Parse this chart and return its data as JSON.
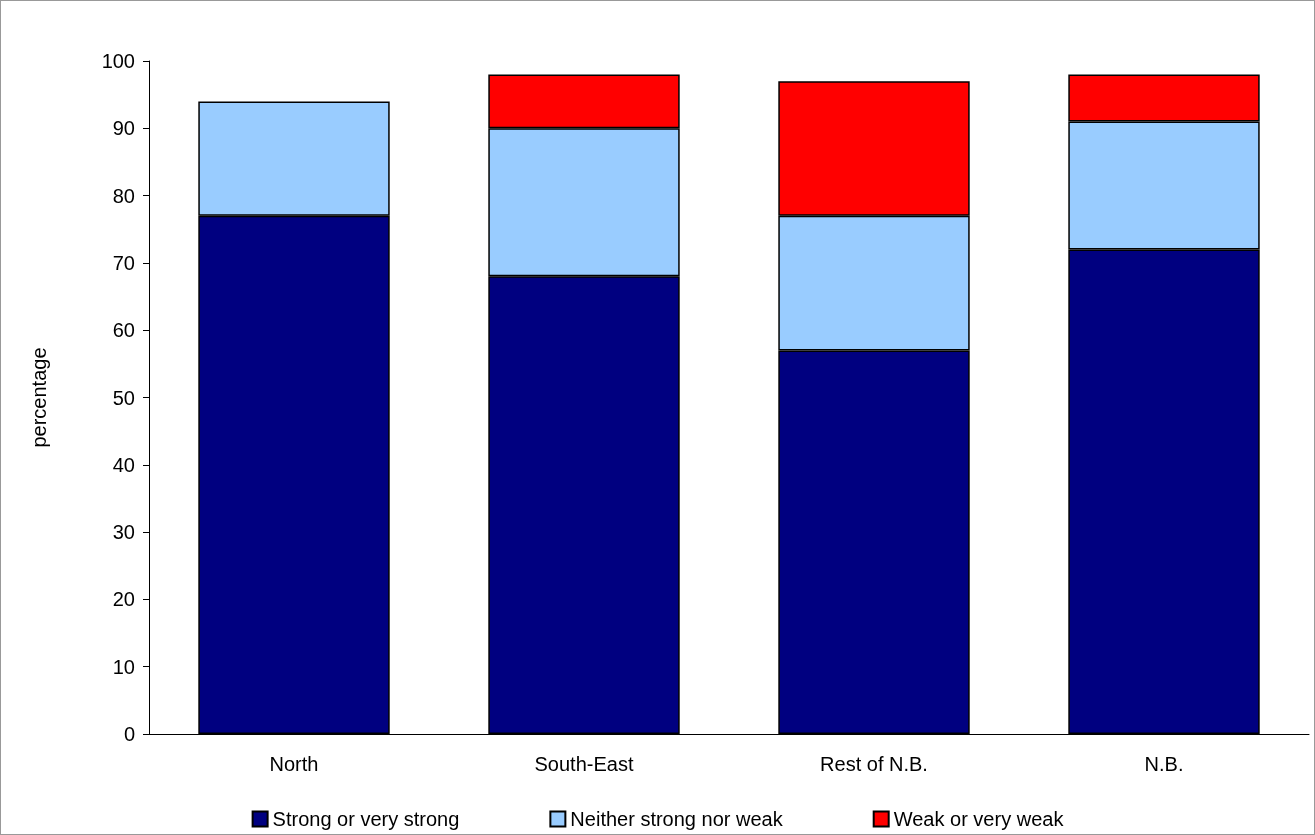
{
  "chart_data": {
    "type": "bar",
    "ylabel": "percentage",
    "categories": [
      "North",
      "South-East",
      "Rest of N.B.",
      "N.B."
    ],
    "series": [
      {
        "name": "Strong or very strong",
        "color": "#000080",
        "values": [
          77,
          68,
          57,
          72
        ]
      },
      {
        "name": "Neither strong nor weak",
        "color": "#99ccff",
        "values": [
          17,
          22,
          20,
          19
        ]
      },
      {
        "name": "Weak or very weak",
        "color": "#ff0000",
        "values": [
          null,
          8,
          20,
          7
        ]
      }
    ],
    "stacked": true,
    "ylim": [
      0,
      100
    ],
    "yticks": [
      0,
      10,
      20,
      30,
      40,
      50,
      60,
      70,
      80,
      90,
      100
    ],
    "grid": false,
    "legend": "bottom"
  }
}
